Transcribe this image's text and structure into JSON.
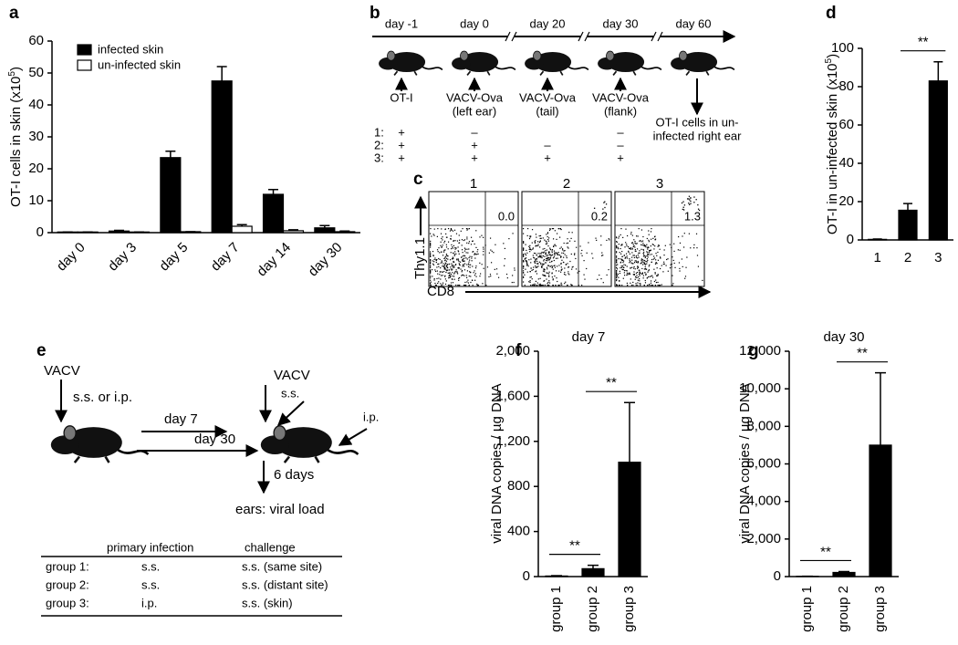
{
  "chart_data": [
    {
      "type": "bar",
      "panel": "a",
      "y_label": [
        "OT-I cells in skin (x10",
        "5",
        ")"
      ],
      "categories": [
        "day 0",
        "day 3",
        "day 5",
        "day 7",
        "day 14",
        "day 30"
      ],
      "series": [
        {
          "name": "infected skin",
          "color": "#000000",
          "values": [
            0.2,
            0.5,
            23.5,
            47.5,
            12,
            1.5
          ],
          "errors": [
            0,
            0.2,
            2,
            4.5,
            1.5,
            0.7
          ]
        },
        {
          "name": "un-infected skin",
          "color": "#ffffff",
          "values": [
            0.2,
            0.2,
            0.3,
            2,
            0.6,
            0.3
          ],
          "errors": [
            0,
            0,
            0,
            0.5,
            0.3,
            0.2
          ]
        }
      ],
      "ylim": [
        0,
        60
      ],
      "yticks": [
        0,
        10,
        20,
        30,
        40,
        50,
        60
      ],
      "legend": "top-left"
    },
    {
      "type": "bar",
      "panel": "d",
      "y_label": [
        "OT-I in un-infected skin (x10",
        "5",
        ")"
      ],
      "categories": [
        "1",
        "2",
        "3"
      ],
      "series": [
        {
          "color": "#000000",
          "values": [
            0.3,
            15.5,
            83
          ],
          "errors": [
            0.2,
            3.5,
            10
          ]
        }
      ],
      "ylim": [
        0,
        100
      ],
      "yticks": [
        0,
        20,
        40,
        60,
        80,
        100
      ],
      "significance": [
        {
          "label": "**",
          "groups": [
            1,
            2
          ]
        }
      ]
    },
    {
      "type": "bar",
      "panel": "f",
      "title": "day 7",
      "y_label": "viral DNA copies / µg DNA",
      "categories": [
        "group 1",
        "group 2",
        "group 3"
      ],
      "series": [
        {
          "color": "#000000",
          "values": [
            5,
            70,
            1015
          ],
          "errors": [
            3,
            30,
            530
          ]
        }
      ],
      "ylim": [
        0,
        2000
      ],
      "yticks": [
        0,
        400,
        800,
        {
          "value": 1200,
          "label": "1,200"
        },
        {
          "value": 1600,
          "label": "1,600"
        },
        {
          "value": 2000,
          "label": "2,000"
        }
      ],
      "significance": [
        {
          "label": "**",
          "groups": [
            0,
            1
          ]
        },
        {
          "label": "**",
          "groups": [
            1,
            2
          ]
        }
      ]
    },
    {
      "type": "bar",
      "panel": "g",
      "title": "day 30",
      "y_label": "viral DNA copies / µg DNA",
      "categories": [
        "group 1",
        "group 2",
        "group 3"
      ],
      "series": [
        {
          "color": "#000000",
          "values": [
            15,
            220,
            7000
          ],
          "errors": [
            5,
            50,
            3850
          ]
        }
      ],
      "ylim": [
        0,
        12000
      ],
      "yticks": [
        0,
        {
          "value": 2000,
          "label": "2,000"
        },
        {
          "value": 4000,
          "label": "4,000"
        },
        {
          "value": 6000,
          "label": "6,000"
        },
        {
          "value": 8000,
          "label": "8,000"
        },
        {
          "value": 10000,
          "label": "10,000"
        },
        {
          "value": 12000,
          "label": "12,000"
        }
      ],
      "significance": [
        {
          "label": "**",
          "groups": [
            0,
            1
          ]
        },
        {
          "label": "**",
          "groups": [
            1,
            2
          ]
        }
      ]
    }
  ],
  "diagram_b": {
    "panel": "b",
    "timepoints": [
      "day -1",
      "day 0",
      "day 20",
      "day 30",
      "day 60"
    ],
    "treatments": [
      [
        "OT-I"
      ],
      [
        "VACV-Ova",
        "(left ear)"
      ],
      [
        "VACV-Ova",
        "(tail)"
      ],
      [
        "VACV-Ova",
        "(flank)"
      ]
    ],
    "readout": [
      "OT-I cells in un-",
      "infected right ear"
    ],
    "groups": [
      {
        "label": "1:",
        "marks": [
          "+",
          "–",
          null,
          "–"
        ]
      },
      {
        "label": "2:",
        "marks": [
          "+",
          "+",
          "–",
          "–"
        ]
      },
      {
        "label": "3:",
        "marks": [
          "+",
          "+",
          "+",
          "+"
        ]
      }
    ]
  },
  "flow_c": {
    "panel": "c",
    "plots": [
      {
        "title": "1",
        "value": "0.0"
      },
      {
        "title": "2",
        "value": "0.2"
      },
      {
        "title": "3",
        "value": "1.3"
      }
    ],
    "y_label": "Thy1.1",
    "x_label": "CD8"
  },
  "diagram_e": {
    "panel": "e",
    "virus": "VACV",
    "route": "s.s. or i.p.",
    "intervals": [
      "day 7",
      "day 30"
    ],
    "challenge": {
      "virus": "VACV",
      "routes": [
        "s.s.",
        "i.p."
      ]
    },
    "wait": "6 days",
    "readout": "ears: viral load",
    "table": {
      "header": [
        "primary infection",
        "challenge"
      ],
      "rows": [
        [
          "group 1:",
          "s.s.",
          "s.s. (same site)"
        ],
        [
          "group 2:",
          "s.s.",
          "s.s. (distant site)"
        ],
        [
          "group 3:",
          "i.p.",
          "s.s. (skin)"
        ]
      ]
    }
  }
}
